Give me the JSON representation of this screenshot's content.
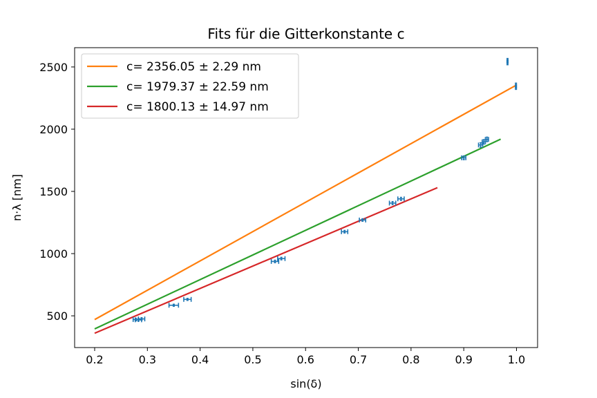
{
  "chart_data": {
    "type": "scatter",
    "title": "Fits für die Gitterkonstante c",
    "xlabel": "sin(δ)",
    "ylabel": "n·λ [nm]",
    "xlim": [
      0.162,
      1.04
    ],
    "ylim": [
      245,
      2655
    ],
    "x_ticks": [
      0.2,
      0.3,
      0.4,
      0.5,
      0.6,
      0.7,
      0.8,
      0.9,
      1.0
    ],
    "x_tick_labels": [
      "0.2",
      "0.3",
      "0.4",
      "0.5",
      "0.6",
      "0.7",
      "0.8",
      "0.9",
      "1.0"
    ],
    "y_ticks": [
      500,
      1000,
      1500,
      2000,
      2500
    ],
    "y_tick_labels": [
      "500",
      "1000",
      "1500",
      "2000",
      "2500"
    ],
    "grid": false,
    "legend_position": "top-left",
    "fit_lines": [
      {
        "label": "c= 2356.05 ± 2.29 nm",
        "color": "#ff7f0e",
        "x": [
          0.2,
          1.0
        ],
        "y": [
          470,
          2355
        ]
      },
      {
        "label": "c= 1979.37 ± 22.59 nm",
        "color": "#2ca02c",
        "x": [
          0.2,
          0.97
        ],
        "y": [
          395,
          1920
        ]
      },
      {
        "label": "c= 1800.13 ± 14.97 nm",
        "color": "#d62728",
        "x": [
          0.2,
          0.85
        ],
        "y": [
          360,
          1530
        ]
      }
    ],
    "measurements": {
      "color": "#1f77b4",
      "points": [
        {
          "x": 0.278,
          "y": 470,
          "xerr": 0.005,
          "yerr": 10
        },
        {
          "x": 0.283,
          "y": 468,
          "xerr": 0.006,
          "yerr": 10
        },
        {
          "x": 0.289,
          "y": 475,
          "xerr": 0.006,
          "yerr": 10
        },
        {
          "x": 0.35,
          "y": 585,
          "xerr": 0.009,
          "yerr": 8
        },
        {
          "x": 0.376,
          "y": 632,
          "xerr": 0.007,
          "yerr": 8
        },
        {
          "x": 0.542,
          "y": 937,
          "xerr": 0.007,
          "yerr": 10
        },
        {
          "x": 0.554,
          "y": 960,
          "xerr": 0.007,
          "yerr": 10
        },
        {
          "x": 0.674,
          "y": 1176,
          "xerr": 0.006,
          "yerr": 10
        },
        {
          "x": 0.708,
          "y": 1270,
          "xerr": 0.006,
          "yerr": 10
        },
        {
          "x": 0.765,
          "y": 1406,
          "xerr": 0.006,
          "yerr": 12
        },
        {
          "x": 0.781,
          "y": 1440,
          "xerr": 0.006,
          "yerr": 12
        },
        {
          "x": 0.9,
          "y": 1770,
          "xerr": 0.004,
          "yerr": 15
        },
        {
          "x": 0.932,
          "y": 1873,
          "xerr": 0.004,
          "yerr": 18
        },
        {
          "x": 0.938,
          "y": 1898,
          "xerr": 0.003,
          "yerr": 18
        },
        {
          "x": 0.944,
          "y": 1918,
          "xerr": 0.003,
          "yerr": 18
        },
        {
          "x": 0.983,
          "y": 2543,
          "xerr": 0.001,
          "yerr": 25
        },
        {
          "x": 0.999,
          "y": 2345,
          "xerr": 0.001,
          "yerr": 25
        }
      ]
    }
  }
}
